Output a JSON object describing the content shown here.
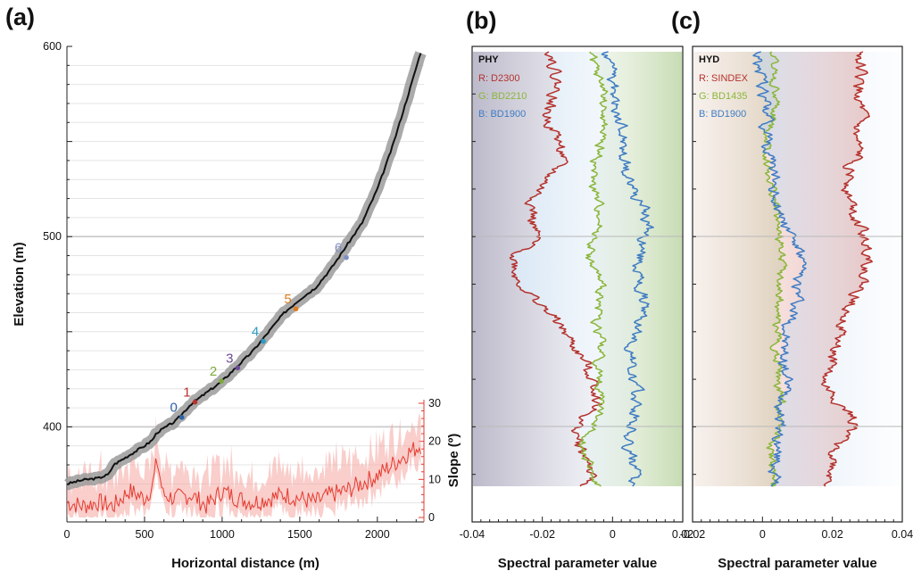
{
  "chart_data": [
    {
      "panel": "(a)",
      "type": "line",
      "xlabel": "Horizontal distance (m)",
      "ylabel": "Elevation (m)",
      "y2label": "Slope (º)",
      "xlim": [
        0,
        2300
      ],
      "ylim": [
        350,
        600
      ],
      "y2lim": [
        0,
        35
      ],
      "x_ticks": [
        0,
        500,
        1000,
        1500,
        2000
      ],
      "y_ticks": [
        400,
        500,
        600
      ],
      "y2_ticks": [
        0,
        10,
        20,
        30
      ],
      "grid": "horizontal",
      "elevation": {
        "x": [
          0,
          100,
          200,
          270,
          300,
          400,
          500,
          550,
          580,
          620,
          700,
          800,
          900,
          1000,
          1100,
          1200,
          1300,
          1400,
          1500,
          1600,
          1700,
          1800,
          1900,
          2000,
          2100,
          2200,
          2280
        ],
        "y": [
          370,
          372,
          373,
          375,
          380,
          385,
          390,
          393,
          397,
          399,
          403,
          412,
          418,
          424,
          432,
          440,
          450,
          460,
          467,
          473,
          483,
          495,
          507,
          525,
          548,
          575,
          597
        ]
      },
      "slope": {
        "x": [
          0,
          100,
          200,
          300,
          400,
          500,
          550,
          580,
          620,
          700,
          800,
          900,
          1000,
          1100,
          1200,
          1300,
          1400,
          1500,
          1600,
          1700,
          1800,
          1900,
          2000,
          2100,
          2200,
          2280
        ],
        "y": [
          4,
          3,
          4,
          3,
          7,
          5,
          8,
          15,
          6,
          5,
          6,
          3,
          7,
          5,
          4,
          5,
          6,
          5,
          4,
          6,
          7,
          9,
          11,
          14,
          17,
          19
        ]
      },
      "points": [
        {
          "label": "0",
          "x": 740,
          "y": 405,
          "color": "#2e62a8"
        },
        {
          "label": "1",
          "x": 825,
          "y": 413,
          "color": "#b5322d"
        },
        {
          "label": "2",
          "x": 995,
          "y": 424,
          "color": "#7da93a"
        },
        {
          "label": "3",
          "x": 1100,
          "y": 431,
          "color": "#6a4a97"
        },
        {
          "label": "4",
          "x": 1265,
          "y": 445,
          "color": "#2d9bc2"
        },
        {
          "label": "5",
          "x": 1475,
          "y": 462,
          "color": "#e07b1f"
        },
        {
          "label": "6",
          "x": 1800,
          "y": 489,
          "color": "#7f8fc4"
        }
      ]
    },
    {
      "panel": "(b)",
      "type": "line",
      "xlabel": "Spectral parameter value",
      "xlim": [
        -0.04,
        0.02
      ],
      "x_ticks": [
        -0.04,
        -0.02,
        0,
        0.02
      ],
      "x_tick_labels": [
        "-0.04",
        "-0.02",
        "0",
        "0.02"
      ],
      "legend_title": "PHY",
      "series": [
        {
          "name": "R: D2300",
          "color": "#b5322d",
          "values": [
            -0.017,
            -0.016,
            -0.016,
            -0.019,
            -0.016,
            -0.014,
            -0.018,
            -0.022,
            -0.023,
            -0.022,
            -0.028,
            -0.027,
            -0.022,
            -0.016,
            -0.012,
            -0.008,
            -0.005,
            -0.004,
            -0.01,
            -0.01,
            -0.006,
            -0.008
          ]
        },
        {
          "name": "G: BD2210",
          "color": "#8bb63b",
          "values": [
            -0.006,
            -0.005,
            -0.002,
            -0.003,
            -0.003,
            -0.004,
            -0.006,
            -0.005,
            -0.003,
            -0.005,
            -0.007,
            -0.004,
            -0.003,
            -0.005,
            -0.003,
            -0.004,
            -0.004,
            -0.003,
            -0.005,
            -0.008,
            -0.007,
            -0.004
          ]
        },
        {
          "name": "B: BD1900",
          "color": "#3f7cc4",
          "values": [
            -0.002,
            0.0,
            0.0,
            0.001,
            0.003,
            0.003,
            0.004,
            0.007,
            0.01,
            0.009,
            0.008,
            0.007,
            0.009,
            0.008,
            0.006,
            0.005,
            0.006,
            0.007,
            0.006,
            0.004,
            0.006,
            0.005
          ]
        }
      ]
    },
    {
      "panel": "(c)",
      "type": "line",
      "xlabel": "Spectral parameter value",
      "xlim": [
        -0.02,
        0.04
      ],
      "x_ticks": [
        -0.02,
        0,
        0.02,
        0.04
      ],
      "x_tick_labels": [
        "-0.02",
        "0",
        "0.02",
        "0.04"
      ],
      "legend_title": "HYD",
      "series": [
        {
          "name": "R: SINDEX",
          "color": "#b5322d",
          "values": [
            0.028,
            0.028,
            0.027,
            0.028,
            0.026,
            0.027,
            0.025,
            0.025,
            0.027,
            0.029,
            0.031,
            0.029,
            0.026,
            0.024,
            0.021,
            0.02,
            0.017,
            0.022,
            0.027,
            0.021,
            0.02,
            0.019
          ]
        },
        {
          "name": "G: BD1435",
          "color": "#8bb63b",
          "values": [
            0.003,
            0.003,
            0.004,
            0.003,
            0.002,
            0.001,
            0.002,
            0.003,
            0.004,
            0.005,
            0.006,
            0.004,
            0.005,
            0.004,
            0.004,
            0.005,
            0.004,
            0.005,
            0.006,
            0.003,
            0.002,
            0.003
          ]
        },
        {
          "name": "B: BD1900",
          "color": "#3f7cc4",
          "values": [
            -0.001,
            -0.001,
            0.0,
            0.001,
            0.001,
            0.002,
            0.003,
            0.004,
            0.006,
            0.009,
            0.011,
            0.01,
            0.01,
            0.008,
            0.006,
            0.006,
            0.007,
            0.006,
            0.005,
            0.004,
            0.004,
            0.003
          ]
        }
      ]
    }
  ]
}
